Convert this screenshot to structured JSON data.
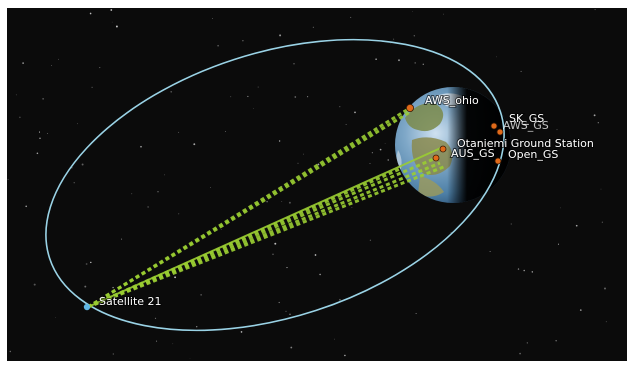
{
  "scene": {
    "satellite": {
      "name": "Satellite 21"
    },
    "ground_stations": [
      {
        "name": "AWS_ohio"
      },
      {
        "name": "SK_GS"
      },
      {
        "name": "AWS_GS"
      },
      {
        "name": "Otaniemi Ground Station"
      },
      {
        "name": "AUS_GS"
      },
      {
        "name": "Open_GS"
      }
    ],
    "colors": {
      "space": "#0b0b0b",
      "orbit": "#9ad3e6",
      "link": "#9acd32",
      "station": "#e06a1a",
      "satellite_marker": "#5fb7e5",
      "label": "#ffffff"
    },
    "icons": {
      "satellite": "satellite-marker-icon",
      "station": "ground-station-marker-icon"
    }
  }
}
